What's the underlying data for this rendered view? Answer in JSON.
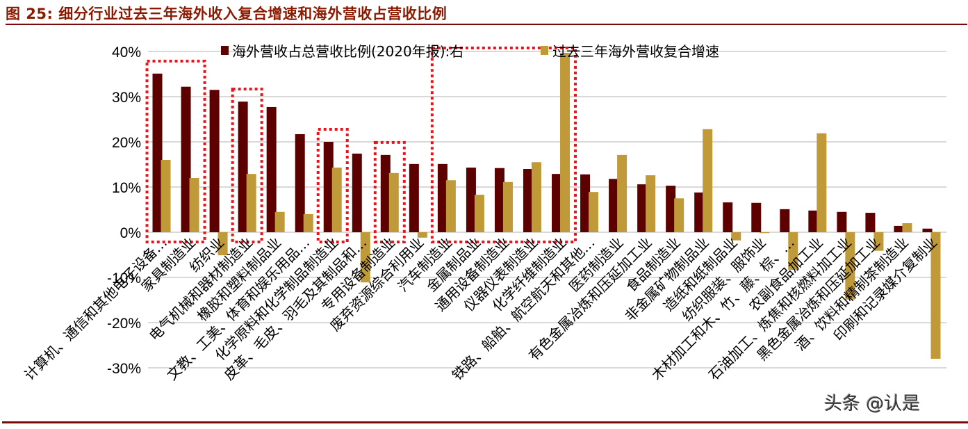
{
  "figure": {
    "title": "图 25:  细分行业过去三年海外收入复合增速和海外营收占营收比例",
    "watermark": "头条 @认是"
  },
  "colors": {
    "series1": "#5C0000",
    "series2": "#C09A38",
    "title": "#8B1A00",
    "rule": "#7A0A0A",
    "highlight_box": "#E8141B",
    "grid": "#D9D9D9"
  },
  "chart_data": {
    "type": "bar",
    "title": "细分行业过去三年海外收入复合增速和海外营收占营收比例",
    "xlabel": "",
    "ylabel": "",
    "ylim": [
      -0.3,
      0.4
    ],
    "yticks": [
      "40%",
      "30%",
      "20%",
      "10%",
      "0%",
      "-10%",
      "-20%",
      "-30%"
    ],
    "grid": true,
    "legend_position": "top",
    "categories": [
      "计算机、通信和其他电子设备…",
      "家具制造业",
      "纺织业",
      "电气机械和器材制造业",
      "橡胶和塑料制品业",
      "文教、工美、体育和娱乐用品…",
      "化学原料和化学制品制造业",
      "皮革、毛皮、羽毛及其制品和…",
      "专用设备制造业",
      "废弃资源综合利用业",
      "汽车制造业",
      "金属制品业",
      "通用设备制造业",
      "仪器仪表制造业",
      "化学纤维制造业",
      "铁路、船舶、航空航天和其他…",
      "医药制造业",
      "有色金属冶炼和压延加工业",
      "食品制造业",
      "非金属矿物制品业",
      "造纸和纸制品业",
      "纺织服装、服饰业",
      "木材加工和木、竹、藤、棕、…",
      "农副食品加工业",
      "石油加工、炼焦和核燃料加工业",
      "黑色金属冶炼和压延加工业",
      "酒、饮料和精制茶制造业",
      "印刷和记录媒介复制业"
    ],
    "series": [
      {
        "name": "海外营收占总营收比例(2020年报):右",
        "values": [
          35.1,
          32.2,
          31.5,
          28.9,
          27.7,
          21.7,
          20.0,
          17.4,
          17.1,
          15.1,
          15.1,
          14.3,
          14.2,
          14.0,
          12.9,
          12.8,
          11.8,
          10.6,
          10.3,
          8.8,
          6.6,
          6.5,
          5.1,
          4.8,
          4.5,
          4.3,
          1.4,
          0.8
        ]
      },
      {
        "name": "过去三年海外营收复合增速",
        "values": [
          16.0,
          12.0,
          -5.1,
          12.9,
          4.5,
          4.0,
          14.3,
          -11.1,
          13.1,
          -1.2,
          11.5,
          8.3,
          11.1,
          15.5,
          39.7,
          8.9,
          17.1,
          12.6,
          7.5,
          22.8,
          -1.8,
          -0.2,
          -8.3,
          21.9,
          -14.9,
          -4.1,
          2.0,
          -28.0
        ]
      }
    ],
    "unit": "%",
    "highlight_groups": [
      {
        "from": 0,
        "to": 1
      },
      {
        "from": 3,
        "to": 3
      },
      {
        "from": 6,
        "to": 6
      },
      {
        "from": 8,
        "to": 8
      },
      {
        "from": 10,
        "to": 14
      }
    ]
  }
}
